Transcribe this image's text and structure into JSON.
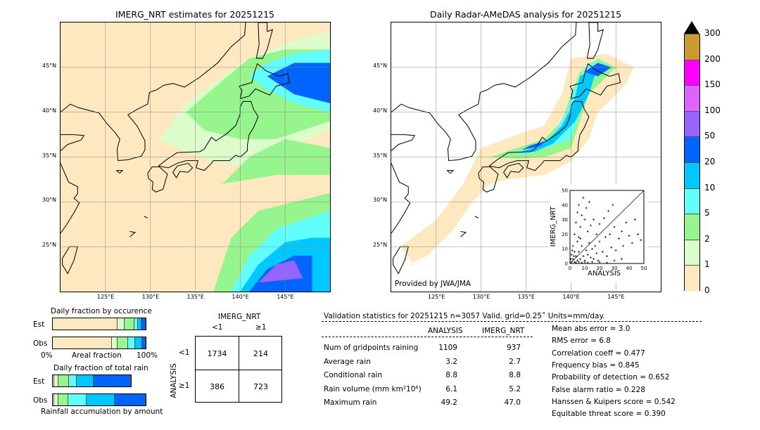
{
  "colors": {
    "levels": [
      "#fee8c0",
      "#dcfccc",
      "#96f58c",
      "#62fefe",
      "#00c8fe",
      "#0064fe",
      "#9664fe",
      "#dc64fe",
      "#ff00ff",
      "#cc9933"
    ],
    "over": "#000000"
  },
  "left_map": {
    "title": "IMERG_NRT estimates for 20251215"
  },
  "right_map": {
    "title": "Daily Radar-AMeDAS analysis for 20251215",
    "credit": "Provided by JWA/JMA"
  },
  "lon_ticks": [
    "125°E",
    "130°E",
    "135°E",
    "140°E",
    "145°E"
  ],
  "lat_ticks": [
    "45°N",
    "40°N",
    "35°N",
    "30°N",
    "25°N"
  ],
  "colorbar": {
    "labels": [
      "0",
      "1",
      "2",
      "5",
      "10",
      "20",
      "50",
      "100",
      "150",
      "200",
      "300"
    ]
  },
  "occurrence": {
    "title": "Daily fraction by occurence",
    "est_label": "Est",
    "obs_label": "Obs",
    "x0": "0%",
    "xmid": "Areal fraction",
    "x1": "100%",
    "est": [
      0.695,
      0.075,
      0.1125,
      0.0375,
      0.0375,
      0.0425
    ],
    "obs": [
      0.64,
      0.06,
      0.11,
      0.08,
      0.075,
      0.035
    ]
  },
  "total_rain": {
    "title": "Daily fraction of total rain",
    "est_label": "Est",
    "obs_label": "Obs",
    "xlabel": "Rainfall accumulation by amount",
    "est": [
      0.0125,
      0.05,
      0.115,
      0.08,
      0.18,
      0.4025
    ],
    "obs": [
      0.0175,
      0.04,
      0.1125,
      0.1925,
      0.3075,
      0.33
    ]
  },
  "contingency": {
    "col_title": "IMERG_NRT",
    "row_title": "ANALYSIS",
    "col_lt": "<1",
    "col_ge": "≥1",
    "row_lt": "<1",
    "row_ge": "≥1",
    "cells": [
      "1734",
      "214",
      "386",
      "723"
    ]
  },
  "stats": {
    "header": "Validation statistics for 20251215  n=3057 Valid. grid=0.25˚ Units=mm/day.",
    "col_a": "ANALYSIS",
    "col_b": "IMERG_NRT",
    "rows": [
      {
        "label": "Num of gridpoints raining",
        "a": "1109",
        "b": "937"
      },
      {
        "label": "Average rain",
        "a": "3.2",
        "b": "2.7"
      },
      {
        "label": "Conditional rain",
        "a": "8.8",
        "b": "8.8"
      },
      {
        "label": "Rain volume (mm km²10⁶)",
        "a": "6.1",
        "b": "5.2"
      },
      {
        "label": "Maximum rain",
        "a": "49.2",
        "b": "47.0"
      }
    ],
    "scores": [
      "Mean abs error =    3.0",
      "RMS error =    6.8",
      "Correlation coeff =  0.477",
      "Frequency bias =  0.845",
      "Probability of detection =  0.652",
      "False alarm ratio =  0.228",
      "Hanssen & Kuipers score =  0.542",
      "Equitable threat score =  0.390"
    ]
  },
  "chart_data": {
    "type": "scatter",
    "xlabel": "ANALYSIS",
    "ylabel": "IMERG_NRT",
    "xlim": [
      0,
      50
    ],
    "ylim": [
      0,
      50
    ],
    "ticks": [
      "0",
      "10",
      "20",
      "30",
      "40",
      "50"
    ],
    "points": [
      [
        1,
        1
      ],
      [
        2,
        3
      ],
      [
        3,
        1
      ],
      [
        4,
        5
      ],
      [
        5,
        2
      ],
      [
        6,
        8
      ],
      [
        7,
        3
      ],
      [
        8,
        12
      ],
      [
        9,
        5
      ],
      [
        10,
        2
      ],
      [
        11,
        9
      ],
      [
        12,
        6
      ],
      [
        13,
        14
      ],
      [
        14,
        4
      ],
      [
        15,
        10
      ],
      [
        16,
        3
      ],
      [
        17,
        12
      ],
      [
        18,
        7
      ],
      [
        19,
        2
      ],
      [
        20,
        15
      ],
      [
        22,
        8
      ],
      [
        24,
        18
      ],
      [
        25,
        5
      ],
      [
        27,
        20
      ],
      [
        28,
        11
      ],
      [
        30,
        25
      ],
      [
        31,
        9
      ],
      [
        33,
        17
      ],
      [
        35,
        22
      ],
      [
        36,
        12
      ],
      [
        38,
        28
      ],
      [
        40,
        19
      ],
      [
        42,
        14
      ],
      [
        44,
        30
      ],
      [
        46,
        20
      ],
      [
        48,
        16
      ],
      [
        3,
        20
      ],
      [
        4,
        28
      ],
      [
        5,
        35
      ],
      [
        6,
        40
      ],
      [
        7,
        25
      ],
      [
        8,
        33
      ],
      [
        9,
        45
      ],
      [
        10,
        30
      ],
      [
        11,
        38
      ],
      [
        12,
        22
      ],
      [
        13,
        42
      ],
      [
        6,
        18
      ],
      [
        2,
        12
      ],
      [
        1,
        6
      ],
      [
        5,
        15
      ],
      [
        7,
        17
      ],
      [
        14,
        26
      ],
      [
        16,
        30
      ],
      [
        18,
        20
      ],
      [
        20,
        27
      ],
      [
        23,
        31
      ],
      [
        26,
        36
      ],
      [
        29,
        40
      ],
      [
        3,
        8
      ],
      [
        0.5,
        3
      ],
      [
        1.5,
        9
      ],
      [
        2.5,
        5
      ],
      [
        4,
        0.5
      ],
      [
        6,
        1
      ],
      [
        8,
        0.5
      ],
      [
        10,
        1
      ],
      [
        12,
        0.5
      ],
      [
        15,
        1
      ],
      [
        20,
        1
      ],
      [
        25,
        0.5
      ],
      [
        30,
        2
      ],
      [
        35,
        3
      ]
    ]
  }
}
